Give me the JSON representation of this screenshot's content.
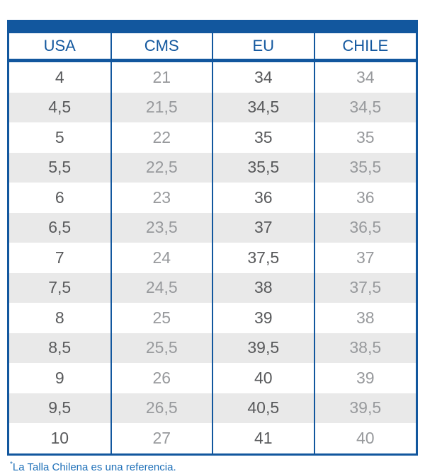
{
  "colors": {
    "primary_blue": "#12579e",
    "footnote_blue": "#1d6fb8",
    "stripe_gray": "#e9e9e9",
    "dark_text": "#58595b",
    "light_text": "#97999c"
  },
  "footnote": {
    "asterisk": "*",
    "text": "La Talla Chilena es una referencia."
  },
  "chart_data": {
    "type": "table",
    "title": "",
    "columns": [
      "USA",
      "CMS",
      "EU",
      "CHILE"
    ],
    "rows": [
      [
        "4",
        "21",
        "34",
        "34"
      ],
      [
        "4,5",
        "21,5",
        "34,5",
        "34,5"
      ],
      [
        "5",
        "22",
        "35",
        "35"
      ],
      [
        "5,5",
        "22,5",
        "35,5",
        "35,5"
      ],
      [
        "6",
        "23",
        "36",
        "36"
      ],
      [
        "6,5",
        "23,5",
        "37",
        "36,5"
      ],
      [
        "7",
        "24",
        "37,5",
        "37"
      ],
      [
        "7,5",
        "24,5",
        "38",
        "37,5"
      ],
      [
        "8",
        "25",
        "39",
        "38"
      ],
      [
        "8,5",
        "25,5",
        "39,5",
        "38,5"
      ],
      [
        "9",
        "26",
        "40",
        "39"
      ],
      [
        "9,5",
        "26,5",
        "40,5",
        "39,5"
      ],
      [
        "10",
        "27",
        "41",
        "40"
      ]
    ],
    "layout_hints": {
      "striped_rows": true,
      "dark_text_columns": [
        "USA",
        "EU"
      ],
      "light_text_columns": [
        "CMS",
        "CHILE"
      ]
    }
  }
}
